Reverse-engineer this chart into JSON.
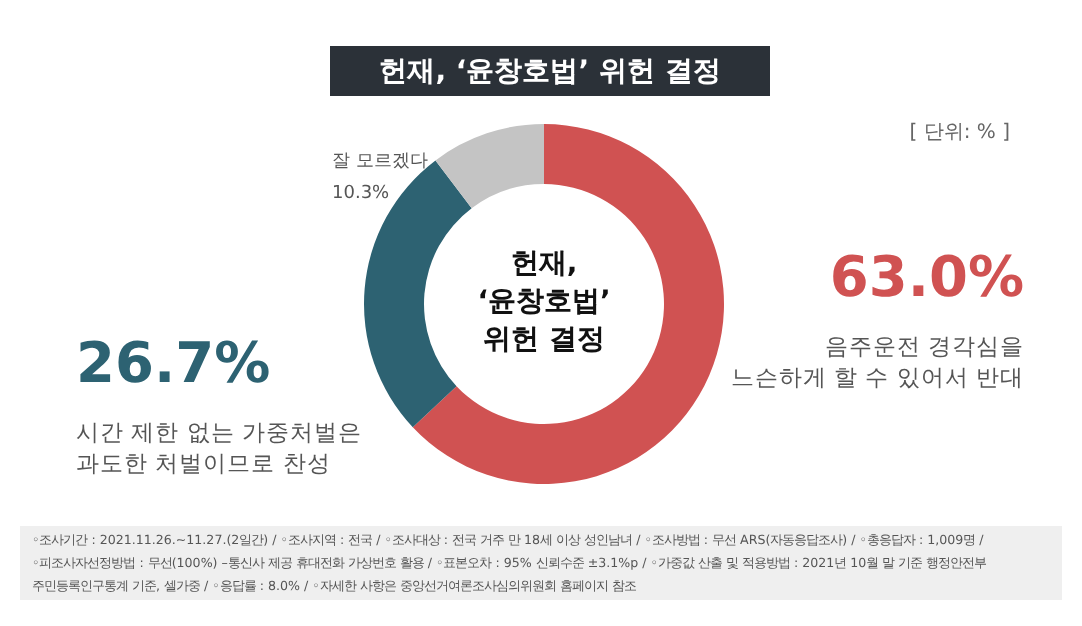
{
  "chart_data": {
    "type": "donut",
    "title": "헌재, ‘윤창호법’ 위헌 결정",
    "categories": [
      "음주운전 경각심을\n느슨하게 할 수 있어서 반대",
      "시간 제한 없는 가중처벌은\n과도한 처벌이므로 찬성",
      "잘 모르겠다"
    ],
    "values": [
      63.0,
      26.7,
      10.3
    ],
    "value_labels": [
      "63.0%",
      "26.7%",
      "10.3%"
    ],
    "colors": [
      "#d05252",
      "#2d6272",
      "#c4c4c4"
    ],
    "annotations": [
      "헌재,\n‘윤창호법’\n위헌 결정",
      "[ 단위: % ]",
      "◦조사기간 : 2021.11.26.~11.27.(2일간) / ◦조사지역 : 전국 / ◦조사대상 : 전국 거주 만 18세 이상 성인남녀 / ◦조사방법 : 무선 ARS(자동응답조사) / ◦총응답자 : 1,009명 /",
      "◦피조사자선정방법 : 무선(100%) –통신사 제공 휴대전화 가상번호 활용 / ◦표본오차 : 95% 신뢰수준 ±3.1%p / ◦가중값 산출 및 적용방법 : 2021년 10월 말 기준 행정안전부",
      "주민등록인구통계 기준, 셀가중 / ◦응답률 : 8.0% / ◦자세한 사항은 중앙선거여론조사심의위원회 홈페이지 참조"
    ]
  }
}
